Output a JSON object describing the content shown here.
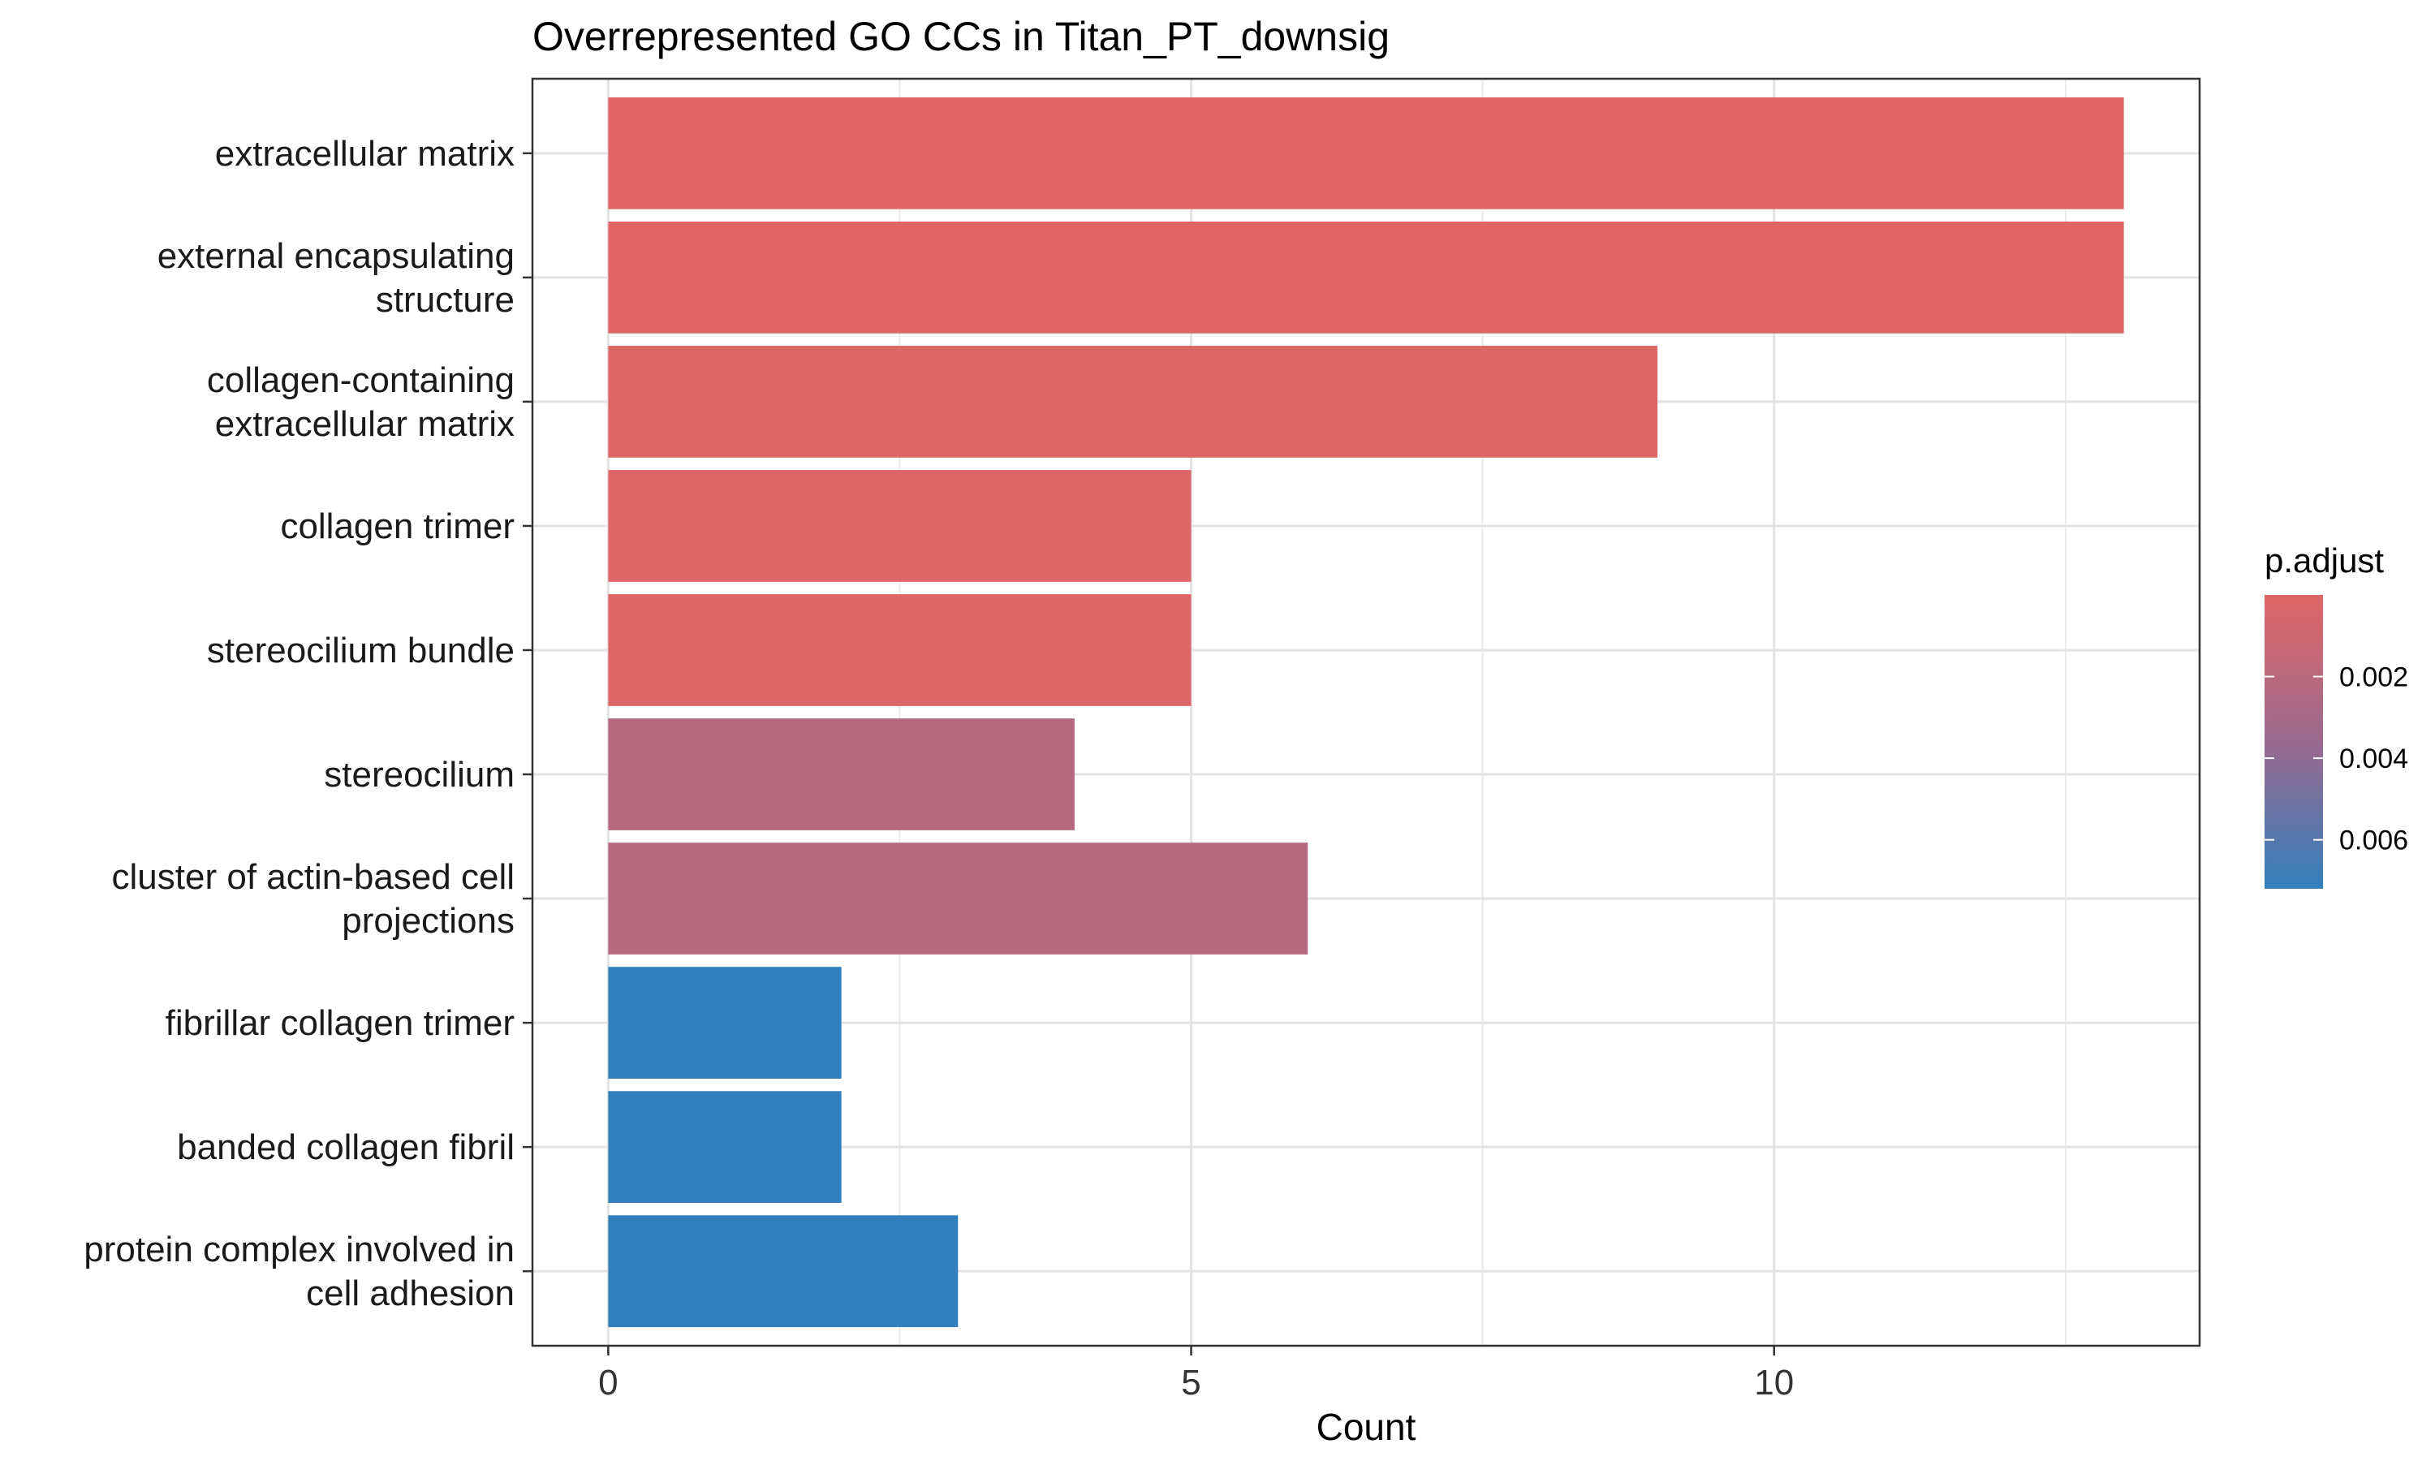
{
  "chart_data": {
    "type": "bar",
    "orientation": "horizontal",
    "title": "Overrepresented GO CCs in Titan_PT_downsig",
    "xlabel": "Count",
    "ylabel": "",
    "xlim": [
      -0.65,
      13.65
    ],
    "x_ticks": [
      0,
      5,
      10
    ],
    "grid": true,
    "categories": [
      [
        "extracellular matrix"
      ],
      [
        "external encapsulating",
        "structure"
      ],
      [
        "collagen-containing",
        "extracellular matrix"
      ],
      [
        "collagen trimer"
      ],
      [
        "stereocilium bundle"
      ],
      [
        "stereocilium"
      ],
      [
        "cluster of actin-based cell",
        "projections"
      ],
      [
        "fibrillar collagen trimer"
      ],
      [
        "banded collagen fibril"
      ],
      [
        "protein complex involved in",
        "cell adhesion"
      ]
    ],
    "values": [
      13,
      13,
      9,
      5,
      5,
      4,
      6,
      2,
      2,
      3
    ],
    "p_adjust": [
      2e-05,
      2e-05,
      3e-05,
      0.0001,
      0.0001,
      0.0022,
      0.0022,
      0.0072,
      0.0072,
      0.0072
    ],
    "legend": {
      "title": "p.adjust",
      "placement": "right",
      "range": [
        0.0,
        0.0072
      ],
      "ticks": [
        0.002,
        0.004,
        0.006
      ],
      "tick_labels": [
        "0.002",
        "0.004",
        "0.006"
      ],
      "color_low": "#e06666",
      "color_mid": "#9b6a8f",
      "color_high": "#337fbd"
    }
  }
}
